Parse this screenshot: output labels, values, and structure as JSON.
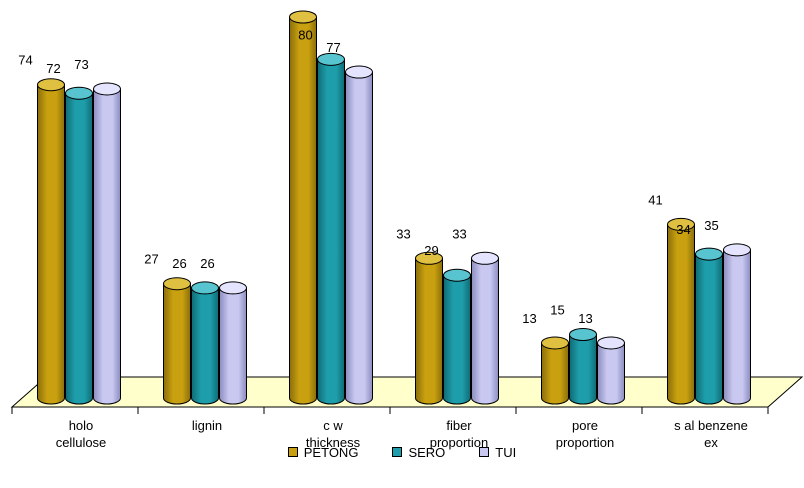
{
  "chart_data": {
    "type": "bar",
    "categories": [
      [
        "holo",
        "cellulose"
      ],
      [
        "lignin"
      ],
      [
        "c w",
        "thickness"
      ],
      [
        "fiber",
        "proportion"
      ],
      [
        "pore",
        "proportion"
      ],
      [
        "s al benzene",
        "ex"
      ]
    ],
    "series": [
      {
        "name": "PETONG",
        "values": [
          74,
          27,
          90,
          33,
          13,
          41
        ],
        "color": "#C8A010",
        "shade": "#8A6E0A",
        "top": "#E0C040"
      },
      {
        "name": "SERO",
        "values": [
          72,
          26,
          80,
          29,
          15,
          34
        ],
        "color": "#1E9DAA",
        "shade": "#0F6B75",
        "top": "#58C4CF"
      },
      {
        "name": "TUI",
        "values": [
          73,
          26,
          77,
          33,
          13,
          35
        ],
        "color": "#C8C8F0",
        "shade": "#8C8CC0",
        "top": "#E4E4FF"
      }
    ],
    "ylim": [
      0,
      90
    ],
    "legend_position": "bottom",
    "floor_color": "#FFFFCC",
    "grid": false
  }
}
